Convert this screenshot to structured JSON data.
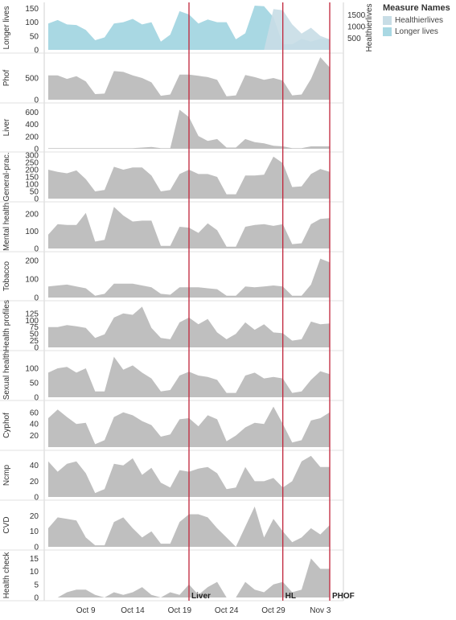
{
  "chart_data": {
    "type": "area",
    "x": [
      "Oct 5",
      "Oct 6",
      "Oct 7",
      "Oct 8",
      "Oct 9",
      "Oct 10",
      "Oct 11",
      "Oct 12",
      "Oct 13",
      "Oct 14",
      "Oct 15",
      "Oct 16",
      "Oct 17",
      "Oct 18",
      "Oct 19",
      "Oct 20",
      "Oct 21",
      "Oct 22",
      "Oct 23",
      "Oct 24",
      "Oct 25",
      "Oct 26",
      "Oct 27",
      "Oct 28",
      "Oct 29",
      "Oct 30",
      "Oct 31",
      "Nov 1",
      "Nov 2",
      "Nov 3",
      "Nov 4"
    ],
    "x_tick_labels": [
      "Oct 9",
      "Oct 14",
      "Oct 19",
      "Oct 24",
      "Oct 29",
      "Nov 3"
    ],
    "x_tick_values": [
      "Oct 9",
      "Oct 14",
      "Oct 19",
      "Oct 24",
      "Oct 29",
      "Nov 3"
    ],
    "events": [
      {
        "label": "Liver",
        "x": "Oct 20"
      },
      {
        "label": "HL",
        "x": "Oct 30"
      },
      {
        "label": "PHOF",
        "x": "Nov 4"
      }
    ],
    "event_color": "#c0243a",
    "area_color": "#bfbfbf",
    "area_stroke": "#9e9e9e",
    "legend": {
      "title": "Measure Names",
      "items": [
        {
          "name": "Healthierlives",
          "color": "#c8dde6"
        },
        {
          "name": "Longer lives",
          "color": "#a9d8e3"
        }
      ]
    },
    "panels": [
      {
        "name": "top",
        "ylabel": "Longer lives",
        "ylim": [
          0,
          160
        ],
        "yticks": [
          0,
          50,
          100,
          150
        ],
        "right_axis": {
          "label": "Healthierlives",
          "ylim": [
            0,
            1900
          ],
          "ticks": [
            500,
            1000,
            1500
          ]
        },
        "series": [
          {
            "name": "Longer lives",
            "color": "#a9d8e3",
            "axis": "left",
            "values": [
              95,
              108,
              92,
              90,
              72,
              35,
              45,
              95,
              100,
              112,
              92,
              100,
              30,
              55,
              140,
              128,
              95,
              110,
              100,
              100,
              38,
              60,
              160,
              158,
              118,
              20,
              20,
              40,
              30,
              40,
              38
            ]
          },
          {
            "name": "Healthierlives",
            "color": "#c8dde6",
            "axis": "right",
            "values": [
              0,
              0,
              0,
              0,
              0,
              0,
              0,
              0,
              0,
              0,
              0,
              0,
              0,
              0,
              0,
              0,
              0,
              0,
              0,
              0,
              0,
              0,
              0,
              0,
              1750,
              1700,
              1100,
              700,
              950,
              600,
              450
            ]
          }
        ]
      },
      {
        "name": "phof",
        "ylabel": "Phof",
        "ylim": [
          0,
          1000
        ],
        "yticks": [
          0,
          500
        ],
        "values": [
          560,
          560,
          480,
          540,
          420,
          130,
          140,
          660,
          640,
          560,
          500,
          400,
          90,
          120,
          580,
          580,
          550,
          520,
          460,
          80,
          100,
          570,
          520,
          460,
          500,
          440,
          100,
          120,
          480,
          980,
          740
        ]
      },
      {
        "name": "liver",
        "ylabel": "Liver",
        "ylim": [
          0,
          700
        ],
        "yticks": [
          0,
          200,
          400,
          600
        ],
        "values": [
          10,
          10,
          10,
          10,
          10,
          10,
          10,
          10,
          10,
          10,
          20,
          30,
          10,
          10,
          640,
          520,
          210,
          130,
          160,
          20,
          20,
          160,
          110,
          90,
          50,
          40,
          10,
          10,
          40,
          40,
          40
        ]
      },
      {
        "name": "general-prac",
        "ylabel": "General-prac.",
        "ylim": [
          0,
          300
        ],
        "yticks": [
          0,
          50,
          100,
          150,
          200,
          250,
          300
        ],
        "values": [
          200,
          185,
          175,
          195,
          135,
          50,
          60,
          220,
          200,
          215,
          215,
          160,
          50,
          60,
          170,
          200,
          170,
          170,
          150,
          30,
          30,
          160,
          160,
          165,
          290,
          245,
          80,
          85,
          170,
          205,
          185
        ]
      },
      {
        "name": "mental-health",
        "ylabel": "Mental health",
        "ylim": [
          0,
          250
        ],
        "yticks": [
          0,
          100,
          200
        ],
        "values": [
          80,
          140,
          135,
          135,
          205,
          40,
          50,
          240,
          190,
          155,
          160,
          160,
          15,
          15,
          125,
          120,
          90,
          145,
          105,
          10,
          10,
          125,
          135,
          140,
          130,
          140,
          25,
          30,
          140,
          170,
          175
        ]
      },
      {
        "name": "tobacco",
        "ylabel": "Tobacco",
        "ylim": [
          0,
          230
        ],
        "yticks": [
          0,
          100,
          200
        ],
        "values": [
          60,
          65,
          70,
          60,
          50,
          10,
          20,
          75,
          75,
          75,
          65,
          55,
          20,
          15,
          55,
          55,
          55,
          50,
          45,
          10,
          10,
          60,
          55,
          60,
          65,
          60,
          10,
          10,
          70,
          210,
          190
        ]
      },
      {
        "name": "health-profiles",
        "ylabel": "Health profiles",
        "ylim": [
          0,
          160
        ],
        "yticks": [
          0,
          25,
          50,
          75,
          100,
          125
        ],
        "values": [
          75,
          75,
          82,
          78,
          72,
          35,
          48,
          110,
          125,
          120,
          150,
          72,
          35,
          30,
          92,
          110,
          85,
          105,
          55,
          30,
          50,
          92,
          65,
          85,
          55,
          52,
          25,
          30,
          95,
          85,
          88
        ]
      },
      {
        "name": "sexual-health",
        "ylabel": "Sexual health",
        "ylim": [
          0,
          150
        ],
        "yticks": [
          0,
          50,
          100
        ],
        "values": [
          85,
          100,
          105,
          85,
          100,
          20,
          20,
          140,
          95,
          110,
          85,
          65,
          20,
          25,
          75,
          88,
          75,
          70,
          60,
          15,
          15,
          75,
          85,
          65,
          70,
          65,
          15,
          20,
          60,
          90,
          80
        ]
      },
      {
        "name": "cyphof",
        "ylabel": "Cyphof",
        "ylim": [
          0,
          75
        ],
        "yticks": [
          20,
          40,
          60
        ],
        "values": [
          50,
          65,
          52,
          40,
          42,
          5,
          12,
          52,
          60,
          55,
          45,
          38,
          18,
          22,
          48,
          50,
          36,
          55,
          48,
          10,
          20,
          34,
          42,
          40,
          70,
          40,
          8,
          12,
          46,
          50,
          60
        ]
      },
      {
        "name": "ncmp",
        "ylabel": "Ncmp",
        "ylim": [
          0,
          55
        ],
        "yticks": [
          0,
          20,
          40
        ],
        "values": [
          45,
          32,
          42,
          45,
          30,
          5,
          10,
          42,
          40,
          49,
          28,
          37,
          18,
          12,
          34,
          32,
          36,
          38,
          30,
          10,
          12,
          38,
          20,
          20,
          24,
          12,
          20,
          45,
          52,
          38,
          38
        ]
      },
      {
        "name": "cvd",
        "ylabel": "CVD",
        "ylim": [
          0,
          28
        ],
        "yticks": [
          0,
          10,
          20
        ],
        "values": [
          12,
          19,
          18,
          17,
          6,
          1,
          1,
          16,
          19,
          12,
          6,
          10,
          2,
          2,
          16,
          21,
          21,
          19,
          12,
          6,
          0,
          13,
          26,
          6,
          18,
          10,
          3,
          6,
          12,
          8,
          14
        ]
      },
      {
        "name": "health-check",
        "ylabel": "Health check",
        "ylim": [
          0,
          17
        ],
        "yticks": [
          0,
          5,
          10,
          15
        ],
        "values": [
          0,
          0,
          2,
          3,
          3,
          1,
          0,
          2,
          1,
          2,
          4,
          1,
          0,
          2,
          1,
          5,
          1,
          4,
          6,
          0,
          0,
          6,
          3,
          2,
          5,
          6,
          2,
          3,
          15,
          11,
          11
        ]
      }
    ]
  }
}
